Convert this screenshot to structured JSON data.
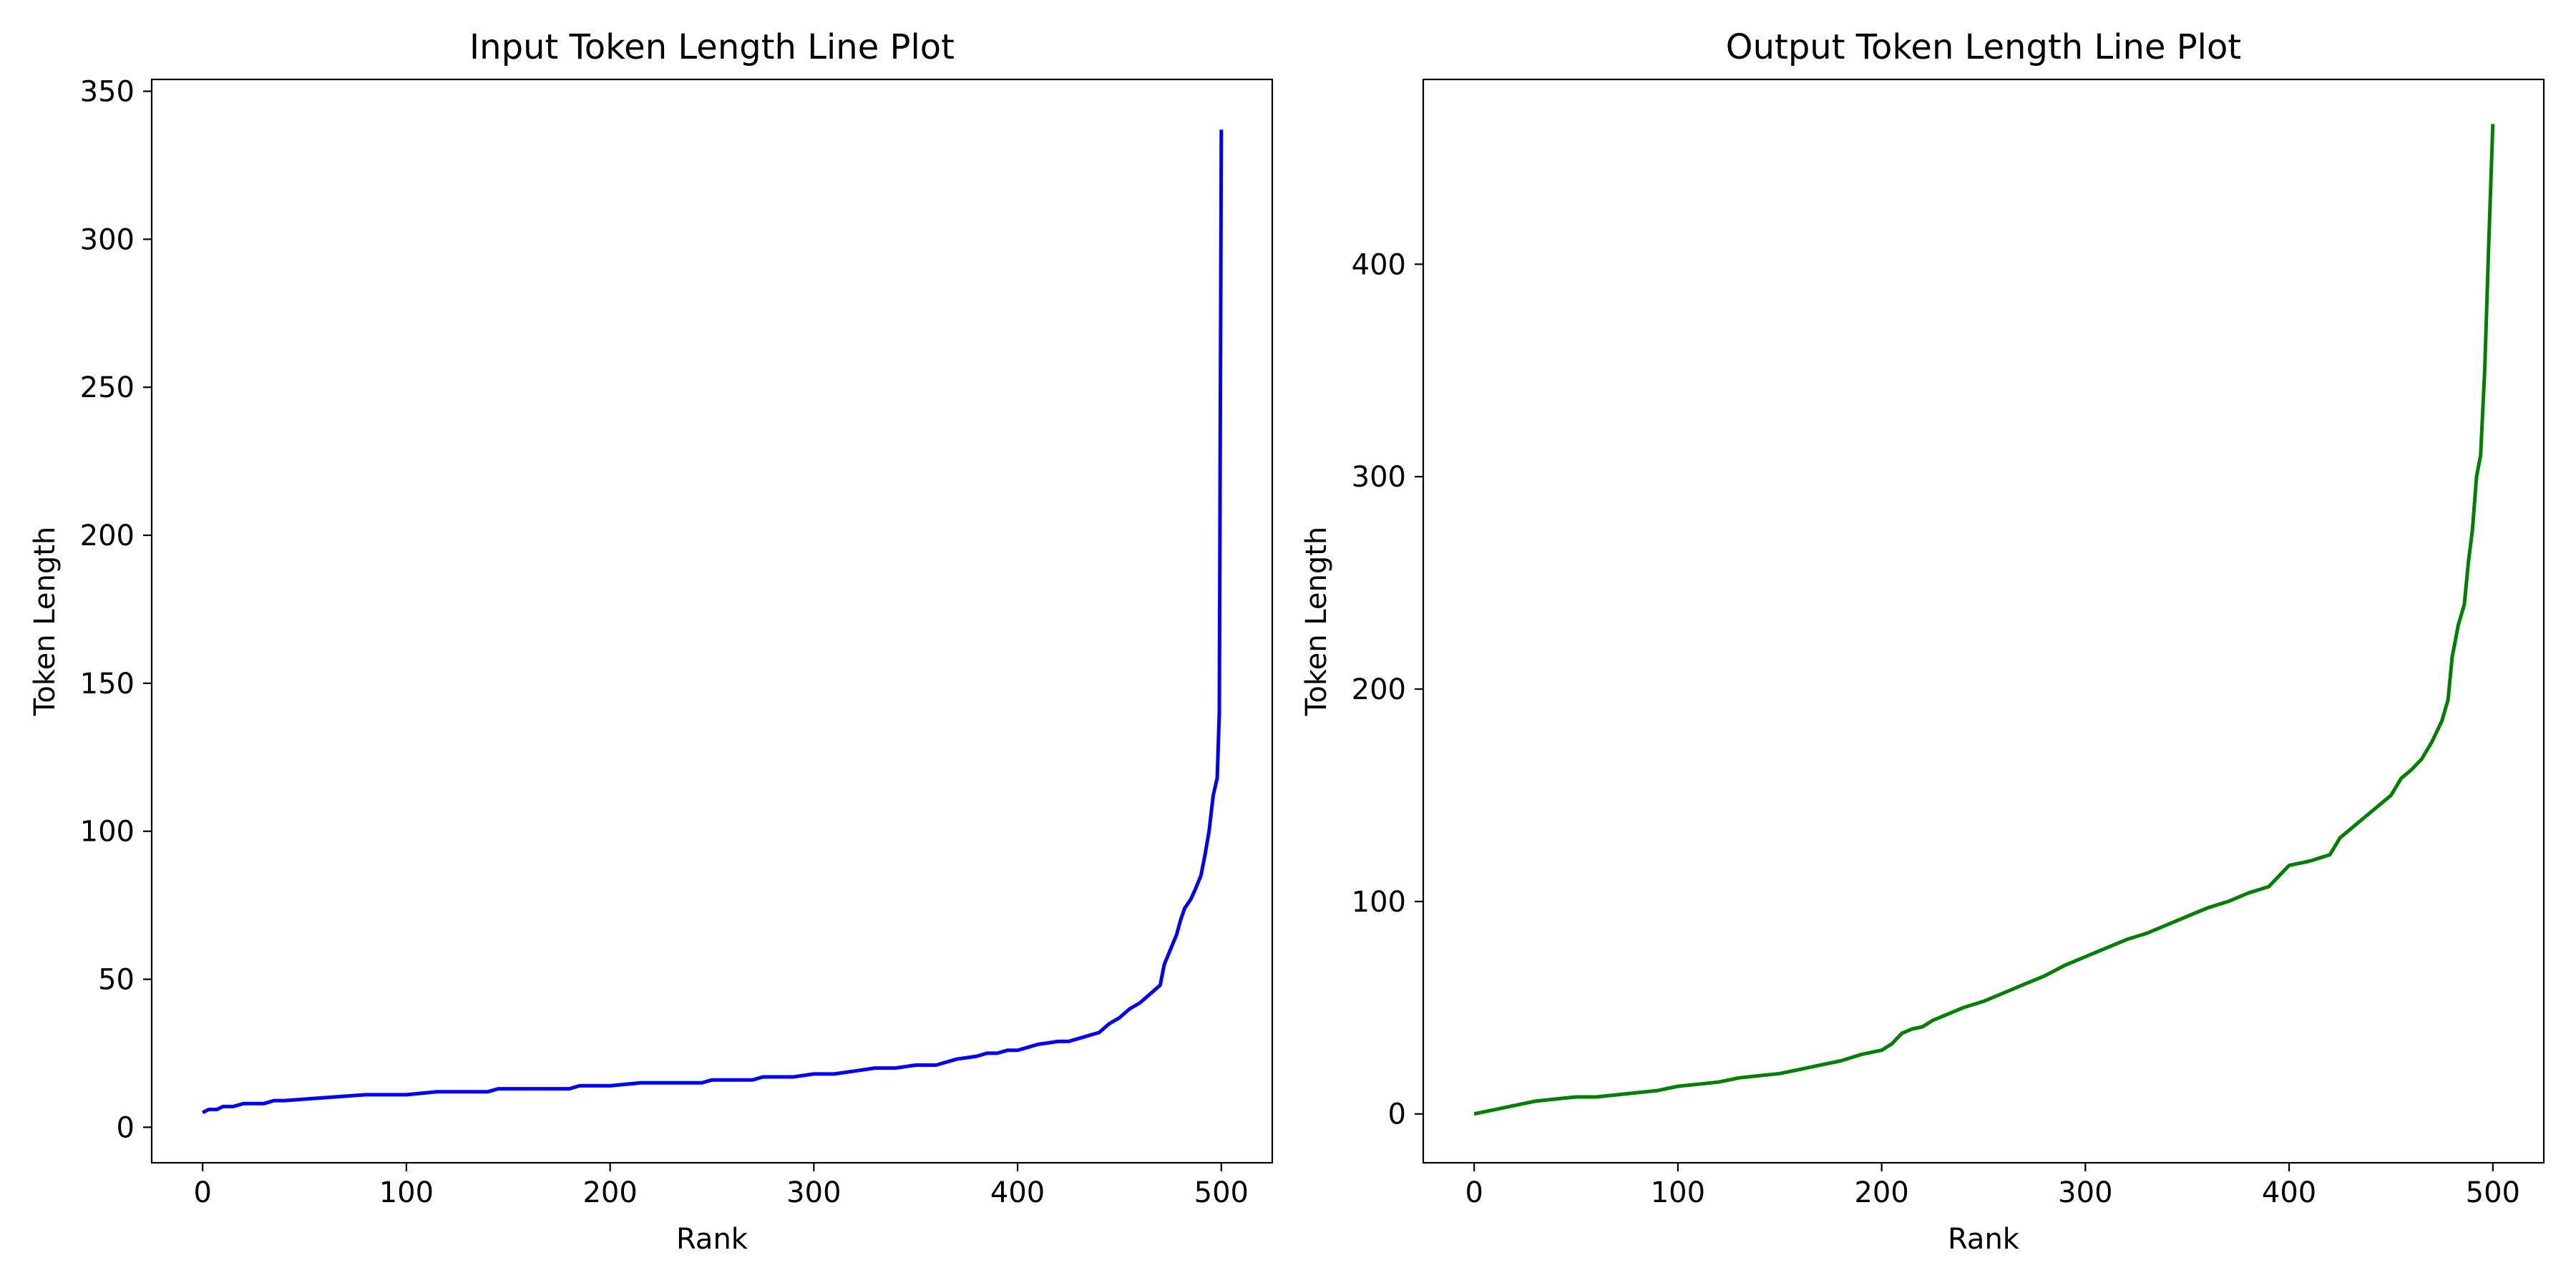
{
  "colors": {
    "input_series": "#0000ff",
    "output_series": "#008000"
  },
  "chart_data": [
    {
      "type": "line",
      "title": "Input Token Length Line Plot",
      "xlabel": "Rank",
      "ylabel": "Token Length",
      "xlim": [
        -25,
        525
      ],
      "ylim": [
        -12,
        354
      ],
      "xticks": [
        0,
        100,
        200,
        300,
        400,
        500
      ],
      "yticks": [
        0,
        50,
        100,
        150,
        200,
        250,
        300,
        350
      ],
      "grid": false,
      "legend": "none",
      "series": [
        {
          "color": "#0000ff",
          "x": [
            0,
            3,
            7,
            10,
            15,
            20,
            25,
            30,
            35,
            40,
            60,
            80,
            100,
            115,
            140,
            145,
            180,
            185,
            200,
            215,
            245,
            250,
            270,
            275,
            290,
            300,
            310,
            320,
            330,
            340,
            350,
            360,
            365,
            370,
            380,
            385,
            390,
            395,
            400,
            405,
            410,
            420,
            425,
            430,
            435,
            440,
            445,
            450,
            455,
            460,
            465,
            470,
            472,
            475,
            478,
            480,
            482,
            485,
            487,
            490,
            492,
            494,
            496,
            498,
            499,
            500
          ],
          "y": [
            5,
            6,
            6,
            7,
            7,
            8,
            8,
            8,
            9,
            9,
            10,
            11,
            11,
            12,
            12,
            13,
            13,
            14,
            14,
            15,
            15,
            16,
            16,
            17,
            17,
            18,
            18,
            19,
            20,
            20,
            21,
            21,
            22,
            23,
            24,
            25,
            25,
            26,
            26,
            27,
            28,
            29,
            29,
            30,
            31,
            32,
            35,
            37,
            40,
            42,
            45,
            48,
            55,
            60,
            65,
            70,
            74,
            77,
            80,
            85,
            92,
            100,
            112,
            118,
            140,
            337
          ]
        }
      ]
    },
    {
      "type": "line",
      "title": "Output Token Length Line Plot",
      "xlabel": "Rank",
      "ylabel": "Token Length",
      "xlim": [
        -25,
        525
      ],
      "ylim": [
        -23,
        487
      ],
      "xticks": [
        0,
        100,
        200,
        300,
        400,
        500
      ],
      "yticks": [
        0,
        100,
        200,
        300,
        400
      ],
      "grid": false,
      "legend": "none",
      "series": [
        {
          "color": "#008000",
          "x": [
            0,
            10,
            20,
            30,
            40,
            50,
            60,
            70,
            80,
            90,
            100,
            110,
            120,
            130,
            140,
            150,
            160,
            170,
            180,
            190,
            200,
            205,
            210,
            215,
            220,
            225,
            230,
            240,
            250,
            260,
            270,
            280,
            290,
            300,
            310,
            320,
            330,
            340,
            350,
            360,
            370,
            380,
            390,
            395,
            400,
            410,
            420,
            425,
            430,
            440,
            450,
            455,
            460,
            465,
            470,
            475,
            478,
            480,
            483,
            486,
            488,
            490,
            492,
            494,
            496,
            498,
            500
          ],
          "y": [
            0,
            2,
            4,
            6,
            7,
            8,
            8,
            9,
            10,
            11,
            13,
            14,
            15,
            17,
            18,
            19,
            21,
            23,
            25,
            28,
            30,
            33,
            38,
            40,
            41,
            44,
            46,
            50,
            53,
            57,
            61,
            65,
            70,
            74,
            78,
            82,
            85,
            89,
            93,
            97,
            100,
            104,
            107,
            112,
            117,
            119,
            122,
            130,
            134,
            142,
            150,
            158,
            162,
            167,
            175,
            185,
            195,
            215,
            230,
            240,
            260,
            275,
            300,
            310,
            350,
            410,
            466
          ]
        }
      ]
    }
  ]
}
